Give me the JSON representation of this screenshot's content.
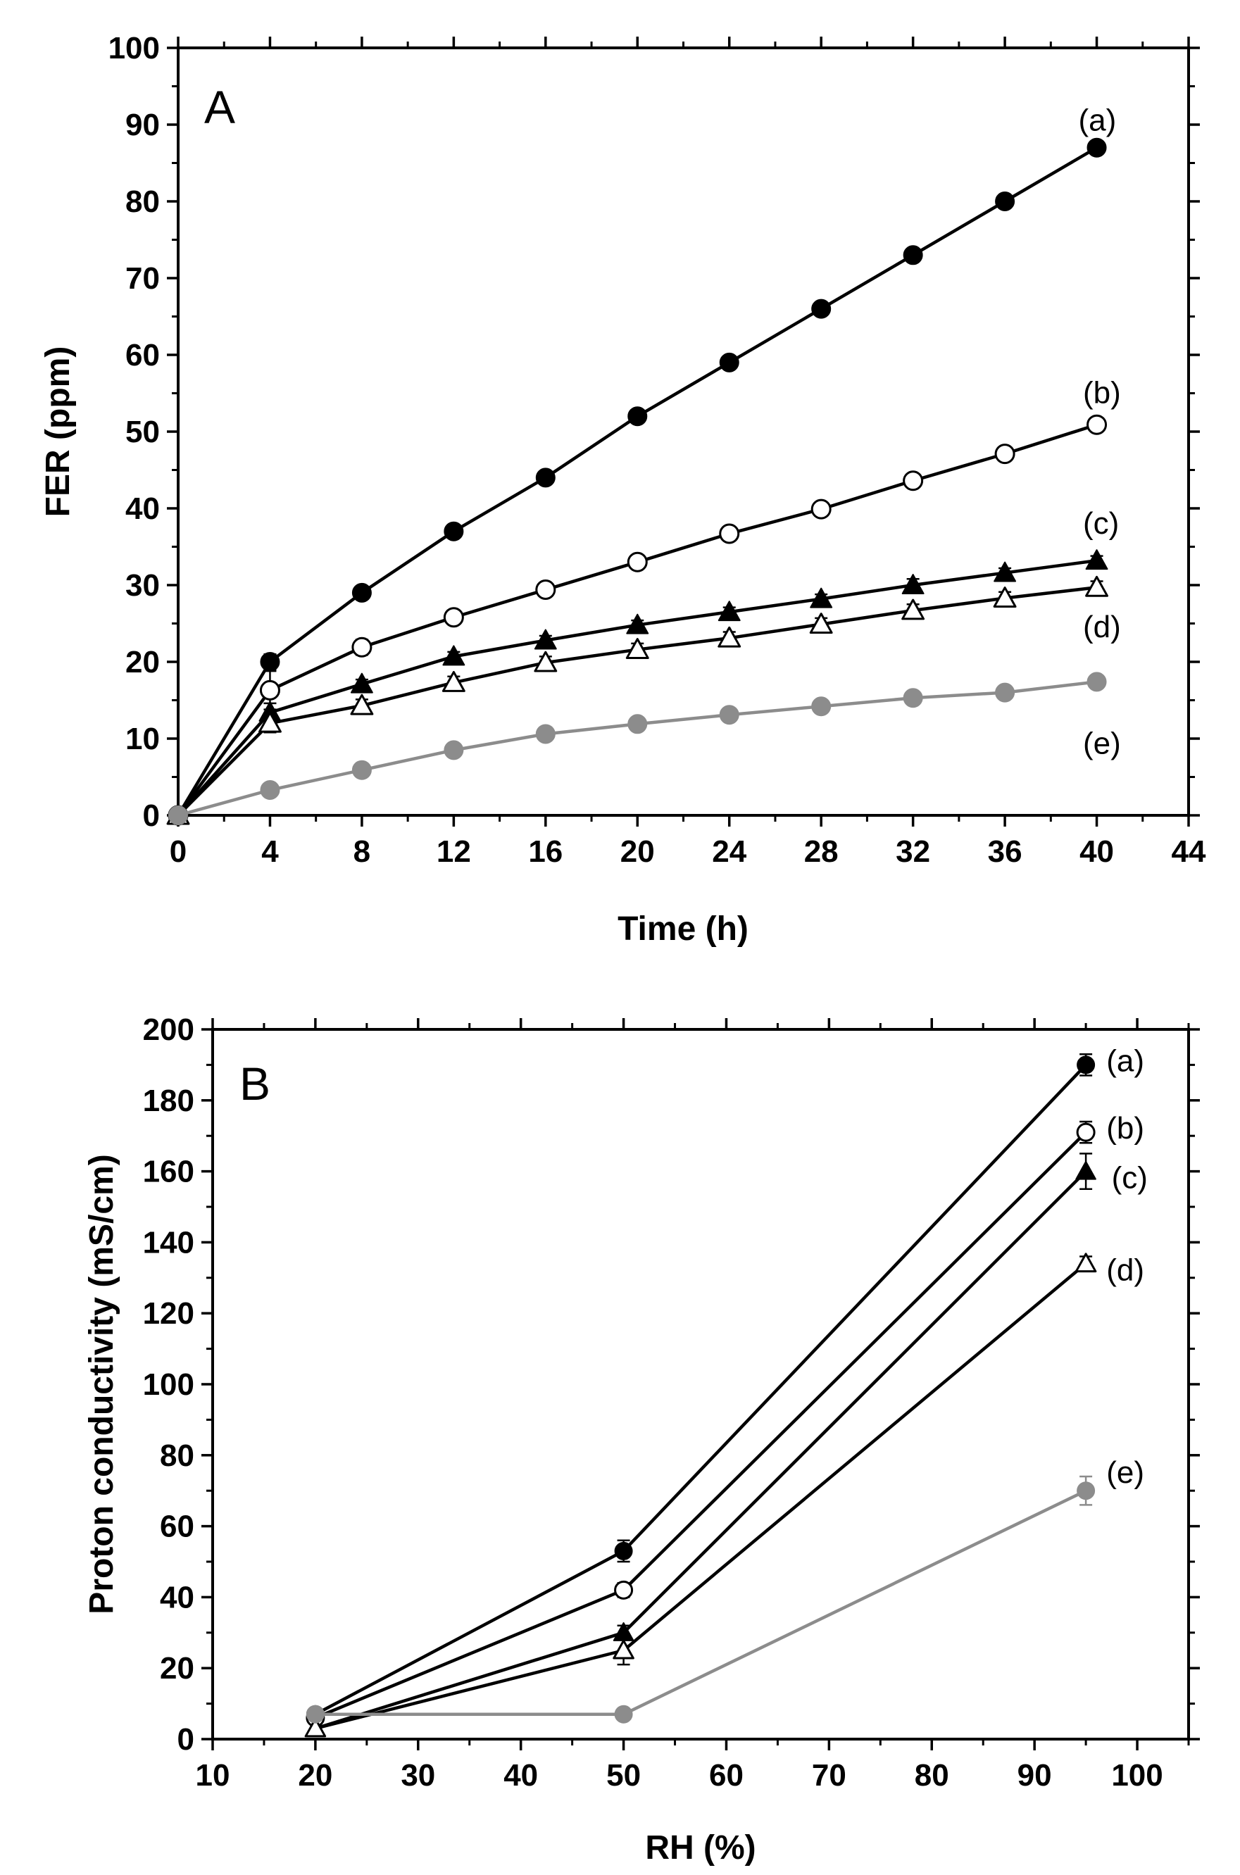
{
  "chart_data": [
    {
      "type": "line",
      "panel": "A",
      "xlabel": "Time (h)",
      "ylabel": "FER (ppm)",
      "xlim": [
        0,
        44
      ],
      "ylim": [
        0,
        100
      ],
      "xticks": [
        0,
        4,
        8,
        12,
        16,
        20,
        24,
        28,
        32,
        36,
        40,
        44
      ],
      "yticks": [
        0,
        10,
        20,
        30,
        40,
        50,
        60,
        70,
        80,
        90,
        100
      ],
      "grid": false,
      "x": [
        0,
        4,
        8,
        12,
        16,
        20,
        24,
        28,
        32,
        36,
        40
      ],
      "series": [
        {
          "name": "(a)",
          "marker": "filled-circle",
          "color": "#000000",
          "values": [
            0,
            20,
            29,
            37,
            44,
            52,
            59,
            66,
            73,
            80,
            87
          ],
          "err": [
            0,
            1.0,
            0.6,
            0.5,
            0.5,
            0.5,
            0.5,
            0.5,
            0.5,
            0.5,
            0.5
          ]
        },
        {
          "name": "(b)",
          "marker": "open-circle",
          "color": "#000000",
          "values": [
            0,
            16.3,
            21.9,
            25.8,
            29.4,
            33.0,
            36.7,
            39.9,
            43.6,
            47.1,
            50.9
          ],
          "err": [
            0,
            2.5,
            1.0,
            0.8,
            0.8,
            0.8,
            0.8,
            0.8,
            0.8,
            0.8,
            0.8
          ]
        },
        {
          "name": "(c)",
          "marker": "filled-triangle",
          "color": "#000000",
          "values": [
            0,
            13.4,
            17.1,
            20.7,
            22.8,
            24.8,
            26.5,
            28.2,
            30.0,
            31.6,
            33.2
          ],
          "err": [
            0,
            1.2,
            0.6,
            0.6,
            0.6,
            0.6,
            0.6,
            0.6,
            0.8,
            0.6,
            0.6
          ]
        },
        {
          "name": "(d)",
          "marker": "open-triangle",
          "color": "#000000",
          "values": [
            0,
            12.0,
            14.3,
            17.3,
            19.9,
            21.6,
            23.1,
            24.9,
            26.7,
            28.3,
            29.7
          ],
          "err": [
            0,
            1.2,
            0.8,
            0.8,
            0.8,
            0.8,
            0.8,
            0.8,
            0.8,
            0.8,
            0.8
          ]
        },
        {
          "name": "(e)",
          "marker": "filled-circle",
          "color": "#8c8c8c",
          "values": [
            0,
            3.3,
            5.9,
            8.5,
            10.6,
            11.9,
            13.1,
            14.2,
            15.3,
            16.0,
            17.4
          ],
          "err": [
            0,
            0,
            0,
            0,
            0,
            0,
            0,
            0,
            0,
            0,
            0
          ]
        }
      ],
      "label_positions": [
        {
          "text": "(a)",
          "x": 39.2,
          "y": 90.5
        },
        {
          "text": "(b)",
          "x": 39.4,
          "y": 55.0
        },
        {
          "text": "(c)",
          "x": 39.4,
          "y": 38.0
        },
        {
          "text": "(d)",
          "x": 39.4,
          "y": 24.5
        },
        {
          "text": "(e)",
          "x": 39.4,
          "y": 9.3
        }
      ]
    },
    {
      "type": "line",
      "panel": "B",
      "xlabel": "RH (%)",
      "ylabel": "Proton conductivity (mS/cm)",
      "xlim": [
        10,
        105
      ],
      "ylim": [
        0,
        200
      ],
      "xticks": [
        10,
        20,
        30,
        40,
        50,
        60,
        70,
        80,
        90,
        100
      ],
      "yticks": [
        0,
        20,
        40,
        60,
        80,
        100,
        120,
        140,
        160,
        180,
        200
      ],
      "grid": false,
      "x": [
        20,
        50,
        95
      ],
      "series": [
        {
          "name": "(a)",
          "marker": "filled-circle",
          "color": "#000000",
          "values": [
            7,
            53,
            190
          ],
          "err": [
            0,
            3,
            3
          ]
        },
        {
          "name": "(b)",
          "marker": "open-circle",
          "color": "#000000",
          "values": [
            6,
            42,
            171
          ],
          "err": [
            0,
            2,
            3
          ]
        },
        {
          "name": "(c)",
          "marker": "filled-triangle",
          "color": "#000000",
          "values": [
            3,
            30,
            160
          ],
          "err": [
            0,
            2,
            5
          ]
        },
        {
          "name": "(d)",
          "marker": "open-triangle",
          "color": "#000000",
          "values": [
            3,
            25,
            134
          ],
          "err": [
            0,
            4,
            2
          ]
        },
        {
          "name": "(e)",
          "marker": "filled-circle",
          "color": "#8c8c8c",
          "values": [
            7,
            7,
            70
          ],
          "err": [
            0,
            0,
            4
          ]
        }
      ],
      "label_positions": [
        {
          "text": "(a)",
          "x": 97,
          "y": 191
        },
        {
          "text": "(b)",
          "x": 97,
          "y": 172
        },
        {
          "text": "(c)",
          "x": 97.5,
          "y": 158
        },
        {
          "text": "(d)",
          "x": 97,
          "y": 132
        },
        {
          "text": "(e)",
          "x": 97,
          "y": 75
        }
      ]
    }
  ]
}
